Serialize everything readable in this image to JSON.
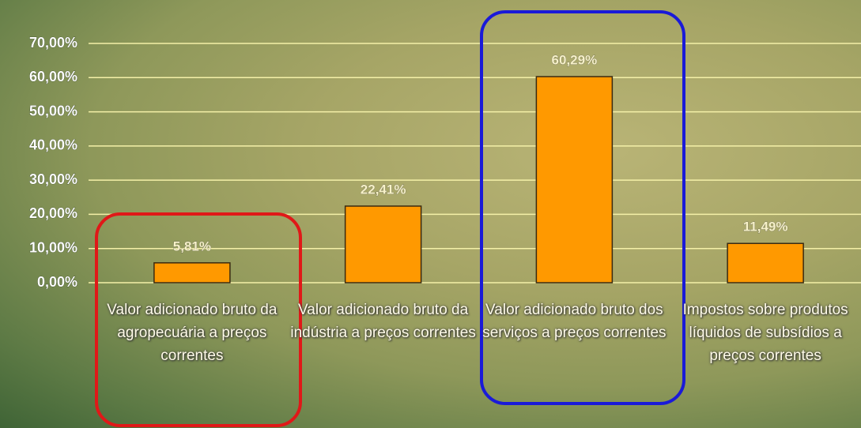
{
  "chart_data": {
    "type": "bar",
    "categories": [
      "Valor adicionado bruto da agropecuária a preços correntes",
      "Valor adicionado bruto da indústria a preços correntes",
      "Valor adicionado bruto dos serviços a preços correntes",
      "Impostos sobre produtos líquidos de subsídios a preços correntes"
    ],
    "values": [
      5.81,
      22.41,
      60.29,
      11.49
    ],
    "value_labels": [
      "5,81%",
      "22,41%",
      "60,29%",
      "11,49%"
    ],
    "color": "#ff9900",
    "ylim": [
      0,
      70
    ],
    "yticks": [
      {
        "value": 0,
        "label": "0,00%"
      },
      {
        "value": 10,
        "label": "10,00%"
      },
      {
        "value": 20,
        "label": "20,00%"
      },
      {
        "value": 30,
        "label": "30,00%"
      },
      {
        "value": 40,
        "label": "40,00%"
      },
      {
        "value": 50,
        "label": "50,00%"
      },
      {
        "value": 60,
        "label": "60,00%"
      },
      {
        "value": 70,
        "label": "70,00%"
      }
    ],
    "grid": true
  }
}
